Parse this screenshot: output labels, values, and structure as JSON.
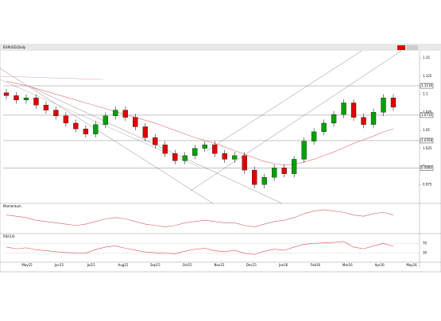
{
  "chart_data": {
    "type": "candlestick",
    "title": "EURUSD,Daily",
    "open": [
      1.102,
      1.098,
      1.092,
      1.095,
      1.085,
      1.078,
      1.07,
      1.06,
      1.052,
      1.045,
      1.058,
      1.07,
      1.078,
      1.068,
      1.055,
      1.04,
      1.03,
      1.018,
      1.008,
      1.015,
      1.025,
      1.03,
      1.018,
      1.01,
      1.015,
      0.995,
      0.975,
      0.985,
      0.998,
      0.99,
      1.01,
      1.035,
      1.048,
      1.06,
      1.072,
      1.088,
      1.068,
      1.058,
      1.075,
      1.095
    ],
    "high": [
      1.107,
      1.103,
      1.1,
      1.1,
      1.09,
      1.083,
      1.075,
      1.065,
      1.057,
      1.063,
      1.075,
      1.083,
      1.083,
      1.073,
      1.06,
      1.045,
      1.035,
      1.023,
      1.02,
      1.03,
      1.035,
      1.035,
      1.023,
      1.02,
      1.02,
      1.0,
      0.99,
      1.003,
      1.003,
      1.015,
      1.04,
      1.053,
      1.065,
      1.077,
      1.093,
      1.093,
      1.073,
      1.08,
      1.1,
      1.1
    ],
    "low": [
      1.093,
      1.087,
      1.087,
      1.08,
      1.073,
      1.065,
      1.055,
      1.047,
      1.04,
      1.04,
      1.053,
      1.065,
      1.063,
      1.05,
      1.035,
      1.025,
      1.013,
      1.003,
      1.003,
      1.01,
      1.02,
      1.013,
      1.005,
      1.005,
      0.99,
      0.97,
      0.97,
      0.98,
      0.985,
      0.985,
      1.005,
      1.03,
      1.043,
      1.055,
      1.067,
      1.063,
      1.053,
      1.053,
      1.07,
      1.077
    ],
    "close": [
      1.098,
      1.092,
      1.095,
      1.085,
      1.078,
      1.07,
      1.06,
      1.052,
      1.045,
      1.058,
      1.07,
      1.078,
      1.068,
      1.055,
      1.04,
      1.03,
      1.018,
      1.008,
      1.015,
      1.025,
      1.03,
      1.018,
      1.01,
      1.015,
      0.995,
      0.975,
      0.985,
      0.998,
      0.99,
      1.01,
      1.035,
      1.048,
      1.06,
      1.072,
      1.088,
      1.068,
      1.058,
      1.075,
      1.095,
      1.082
    ],
    "ma": [
      1.118,
      1.115,
      1.112,
      1.108,
      1.104,
      1.1,
      1.096,
      1.092,
      1.088,
      1.084,
      1.08,
      1.076,
      1.072,
      1.068,
      1.064,
      1.06,
      1.055,
      1.05,
      1.045,
      1.04,
      1.036,
      1.032,
      1.027,
      1.022,
      1.017,
      1.012,
      1.007,
      1.004,
      1.002,
      1.003,
      1.006,
      1.01,
      1.015,
      1.02,
      1.026,
      1.032,
      1.037,
      1.042,
      1.048,
      1.052
    ],
    "up_color": "#00a000",
    "down_color": "#e00000",
    "ma_color": "#e07070",
    "ylim": [
      0.95,
      1.16
    ],
    "yticks": [
      0.975,
      1.0,
      1.025,
      1.05,
      1.075,
      1.1,
      1.125,
      1.15
    ],
    "levels": [
      {
        "value": 1.1116,
        "label": "1.1116"
      },
      {
        "value": 1.071,
        "label": "1.0710"
      },
      {
        "value": 1.0358,
        "label": "1.0358"
      },
      {
        "value": 0.998,
        "label": "0.9980"
      }
    ],
    "xlabels": [
      "May15",
      "Jun15",
      "Jul15",
      "Aug15",
      "Sep15",
      "Oct15",
      "Nov15",
      "Dec15",
      "Jan16",
      "Feb16",
      "Mar16",
      "Apr16",
      "May16"
    ],
    "momentum": {
      "name": "Momentum",
      "ylim": [
        -1,
        1
      ],
      "values": [
        0.3,
        0.2,
        0.1,
        -0.1,
        -0.2,
        -0.3,
        -0.4,
        -0.5,
        -0.4,
        -0.2,
        0.0,
        0.1,
        0.0,
        -0.2,
        -0.4,
        -0.5,
        -0.6,
        -0.5,
        -0.3,
        -0.2,
        -0.1,
        -0.2,
        -0.3,
        -0.3,
        -0.5,
        -0.6,
        -0.4,
        -0.2,
        -0.1,
        0.1,
        0.4,
        0.6,
        0.7,
        0.6,
        0.5,
        0.3,
        0.2,
        0.4,
        0.5,
        0.3
      ]
    },
    "rsi": {
      "name": "RSI(14)",
      "ylim": [
        0,
        100
      ],
      "levels": [
        30,
        70
      ],
      "values": [
        55,
        48,
        52,
        44,
        40,
        36,
        33,
        31,
        30,
        45,
        55,
        60,
        50,
        42,
        35,
        32,
        30,
        28,
        38,
        46,
        50,
        40,
        36,
        42,
        30,
        25,
        38,
        46,
        42,
        55,
        66,
        70,
        72,
        74,
        78,
        55,
        48,
        60,
        70,
        58
      ]
    }
  }
}
